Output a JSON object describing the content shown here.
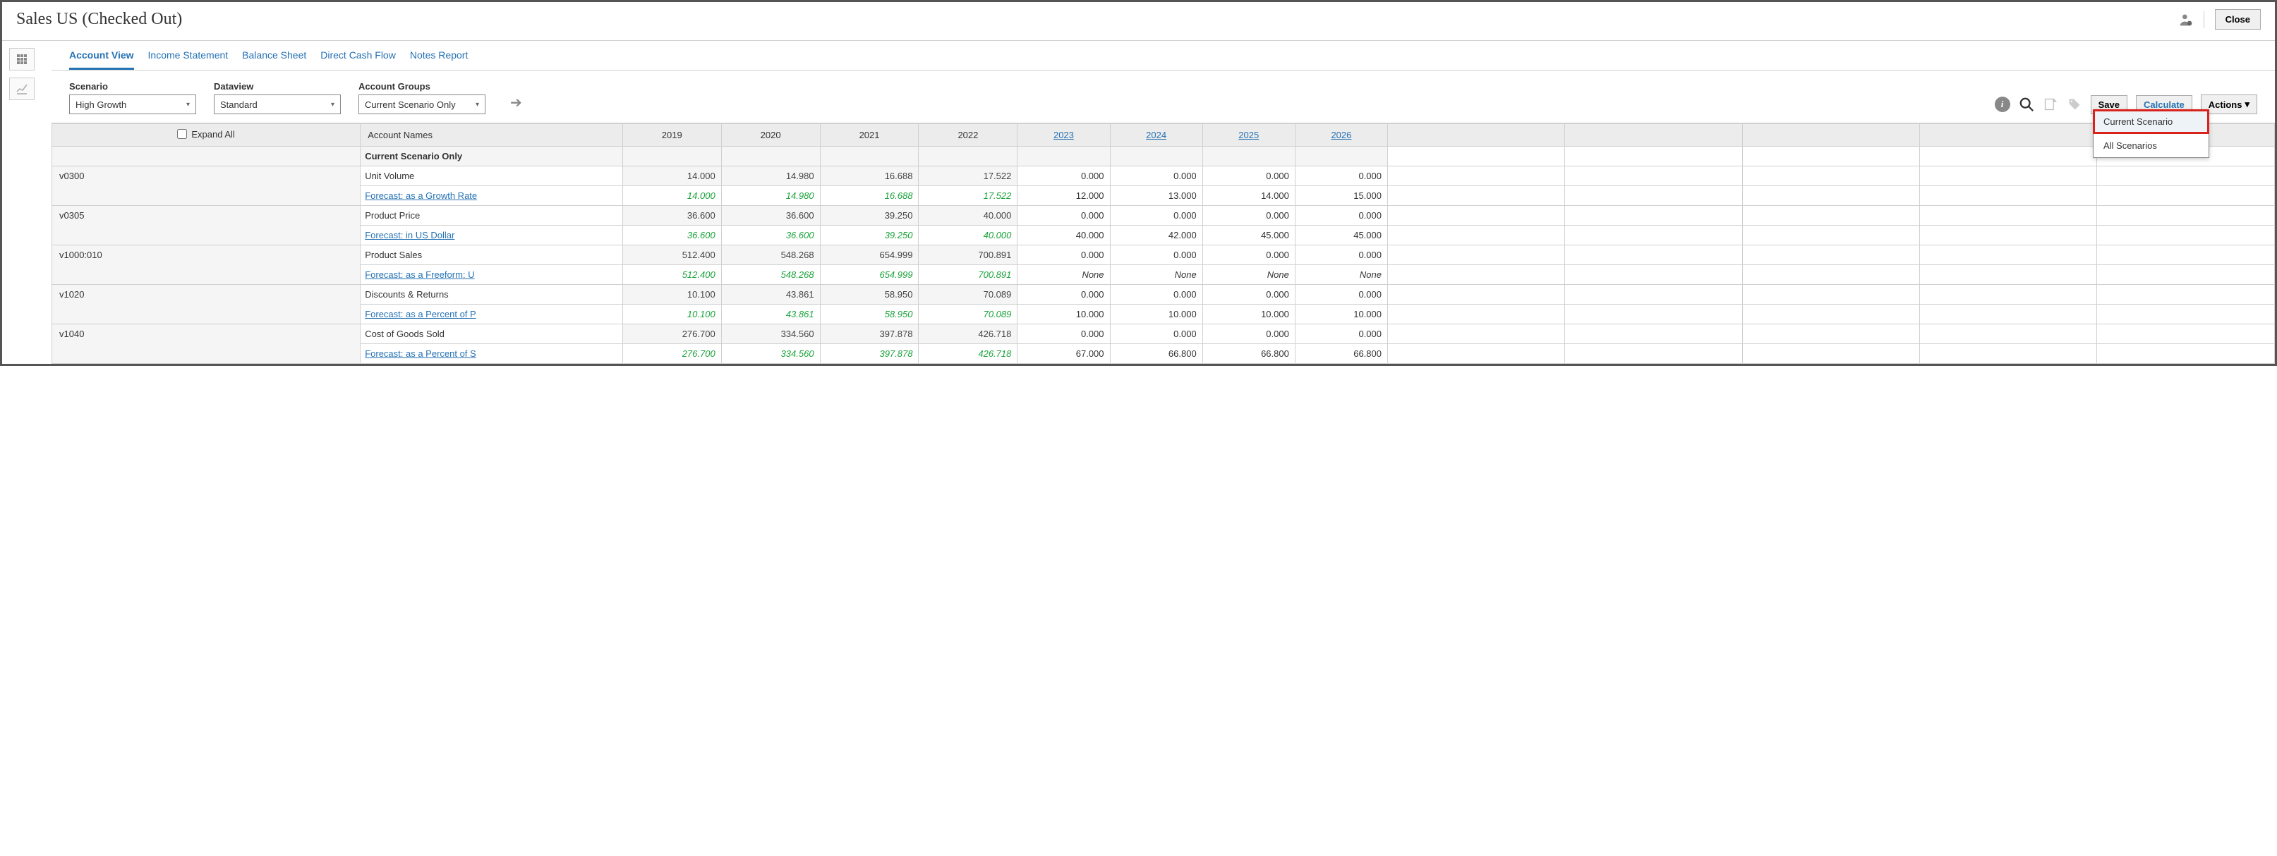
{
  "header": {
    "title": "Sales US (Checked Out)",
    "close_label": "Close"
  },
  "tabs": [
    {
      "label": "Account View",
      "active": true
    },
    {
      "label": "Income Statement",
      "active": false
    },
    {
      "label": "Balance Sheet",
      "active": false
    },
    {
      "label": "Direct Cash Flow",
      "active": false
    },
    {
      "label": "Notes Report",
      "active": false
    }
  ],
  "filters": {
    "scenario": {
      "label": "Scenario",
      "value": "High Growth"
    },
    "dataview": {
      "label": "Dataview",
      "value": "Standard"
    },
    "account_groups": {
      "label": "Account Groups",
      "value": "Current Scenario Only"
    }
  },
  "toolbar": {
    "save_label": "Save",
    "calculate_label": "Calculate",
    "actions_label": "Actions"
  },
  "dropdown": {
    "items": [
      {
        "label": "Current Scenario",
        "highlighted": true
      },
      {
        "label": "All Scenarios",
        "highlighted": false
      }
    ]
  },
  "table": {
    "expand_all_label": "Expand All",
    "account_names_header": "Account Names",
    "years_static": [
      "2019",
      "2020",
      "2021",
      "2022"
    ],
    "years_link": [
      "2023",
      "2024",
      "2025",
      "2026"
    ],
    "blank_col_count": 5,
    "section_title": "Current Scenario Only",
    "rows": [
      {
        "code": "v0300",
        "main": {
          "name": "Unit Volume",
          "vals": [
            "14.000",
            "14.980",
            "16.688",
            "17.522",
            "0.000",
            "0.000",
            "0.000",
            "0.000"
          ],
          "gray_first4": true
        },
        "fc": {
          "name": "Forecast: as a Growth Rate",
          "link": true,
          "vals": [
            "14.000",
            "14.980",
            "16.688",
            "17.522",
            "12.000",
            "13.000",
            "14.000",
            "15.000"
          ],
          "green_first4": true
        }
      },
      {
        "code": "v0305",
        "main": {
          "name": "Product Price",
          "vals": [
            "36.600",
            "36.600",
            "39.250",
            "40.000",
            "0.000",
            "0.000",
            "0.000",
            "0.000"
          ],
          "gray_first4": true
        },
        "fc": {
          "name": "Forecast: in US Dollar",
          "link": true,
          "vals": [
            "36.600",
            "36.600",
            "39.250",
            "40.000",
            "40.000",
            "42.000",
            "45.000",
            "45.000"
          ],
          "green_first4": true
        }
      },
      {
        "code": "v1000:010",
        "main": {
          "name": "Product Sales",
          "vals": [
            "512.400",
            "548.268",
            "654.999",
            "700.891",
            "0.000",
            "0.000",
            "0.000",
            "0.000"
          ],
          "gray_first4": true
        },
        "fc": {
          "name": "Forecast: as a Freeform: U",
          "link": true,
          "vals": [
            "512.400",
            "548.268",
            "654.999",
            "700.891",
            "None",
            "None",
            "None",
            "None"
          ],
          "green_first4": true,
          "italic_last4": true
        }
      },
      {
        "code": "v1020",
        "main": {
          "name": "Discounts & Returns",
          "vals": [
            "10.100",
            "43.861",
            "58.950",
            "70.089",
            "0.000",
            "0.000",
            "0.000",
            "0.000"
          ],
          "gray_first4": true
        },
        "fc": {
          "name": "Forecast: as a Percent of P",
          "link": true,
          "vals": [
            "10.100",
            "43.861",
            "58.950",
            "70.089",
            "10.000",
            "10.000",
            "10.000",
            "10.000"
          ],
          "green_first4": true
        }
      },
      {
        "code": "v1040",
        "main": {
          "name": "Cost of Goods Sold",
          "vals": [
            "276.700",
            "334.560",
            "397.878",
            "426.718",
            "0.000",
            "0.000",
            "0.000",
            "0.000"
          ],
          "gray_first4": true
        },
        "fc": {
          "name": "Forecast: as a Percent of S",
          "link": true,
          "vals": [
            "276.700",
            "334.560",
            "397.878",
            "426.718",
            "67.000",
            "66.800",
            "66.800",
            "66.800"
          ],
          "green_first4": true
        }
      }
    ]
  },
  "colors": {
    "link": "#2572b4",
    "green_text": "#1aa33a",
    "gray_bg": "#f5f5f5",
    "header_bg": "#ececec",
    "border": "#d0d0d0",
    "highlight_border": "#d9221c"
  }
}
